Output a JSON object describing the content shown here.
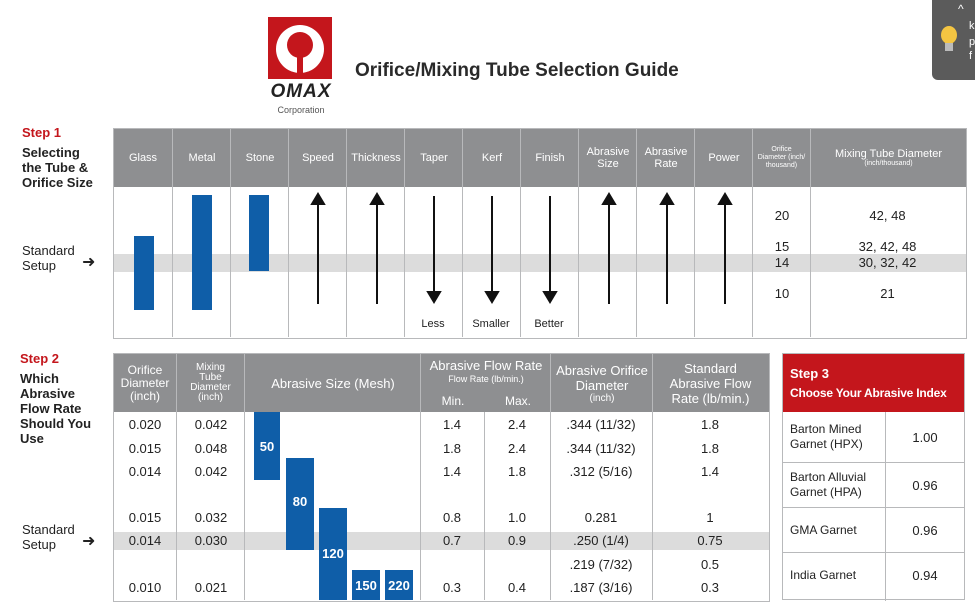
{
  "brand": {
    "name": "OMAX",
    "sub": "Corporation"
  },
  "title": "Orifice/Mixing Tube Selection Guide",
  "tooltip": {
    "lines": [
      "k",
      "p",
      "f"
    ]
  },
  "step1": {
    "label": "Step 1",
    "text": [
      "Selecting",
      "the Tube &",
      "Orifice Size"
    ],
    "standard": [
      "Standard",
      "Setup"
    ],
    "headers": [
      "Glass",
      "Metal",
      "Stone",
      "Speed",
      "Thickness",
      "Taper",
      "Kerf",
      "Finish",
      "Abrasive Size",
      "Abrasive Rate",
      "Power"
    ],
    "orifice_hdr": "Orifice Diameter (inch/ thousand)",
    "mixing_hdr": "Mixing Tube Diameter",
    "mixing_hdr_sub": "(inch/thousand)",
    "bottom_labels": {
      "taper": "Less",
      "kerf": "Smaller",
      "finish": "Better"
    },
    "rows": [
      {
        "orifice": "20",
        "mixing": "42, 48"
      },
      {
        "orifice": "15",
        "mixing": "32, 42, 48"
      },
      {
        "orifice": "14",
        "mixing": "30, 32, 42"
      },
      {
        "orifice": "10",
        "mixing": "21"
      }
    ]
  },
  "step2": {
    "label": "Step 2",
    "text": [
      "Which",
      "Abrasive",
      "Flow Rate",
      "Should You",
      "Use"
    ],
    "standard": [
      "Standard",
      "Setup"
    ],
    "headers": {
      "orifice": "Orifice Diameter (inch)",
      "mixing": "Mixing Tube Diameter (inch)",
      "abrasive_size": "Abrasive Size (Mesh)",
      "flow": "Abrasive Flow Rate",
      "flow_sub": "Flow Rate (lb/min.)",
      "min": "Min.",
      "max": "Max.",
      "abr_orifice": "Abrasive Orifice Diameter",
      "abr_orifice_unit": "(inch)",
      "std_flow": "Standard Abrasive Flow Rate (lb/min.)"
    },
    "mesh": [
      "50",
      "80",
      "120",
      "150",
      "220"
    ],
    "rows": [
      {
        "orifice": "0.020",
        "mixing": "0.042",
        "min": "1.4",
        "max": "2.4",
        "abr": ".344 (11/32)",
        "std": "1.8"
      },
      {
        "orifice": "0.015",
        "mixing": "0.048",
        "min": "1.8",
        "max": "2.4",
        "abr": ".344 (11/32)",
        "std": "1.8"
      },
      {
        "orifice": "0.014",
        "mixing": "0.042",
        "min": "1.4",
        "max": "1.8",
        "abr": ".312 (5/16)",
        "std": "1.4"
      },
      {
        "orifice": "0.015",
        "mixing": "0.032",
        "min": "0.8",
        "max": "1.0",
        "abr": "0.281",
        "std": "1"
      },
      {
        "orifice": "0.014",
        "mixing": "0.030",
        "min": "0.7",
        "max": "0.9",
        "abr": ".250 (1/4)",
        "std": "0.75"
      },
      {
        "orifice": "",
        "mixing": "",
        "min": "",
        "max": "",
        "abr": ".219 (7/32)",
        "std": "0.5"
      },
      {
        "orifice": "0.010",
        "mixing": "0.021",
        "min": "0.3",
        "max": "0.4",
        "abr": ".187 (3/16)",
        "std": "0.3"
      }
    ]
  },
  "step3": {
    "label": "Step 3",
    "title": "Choose Your Abrasive Index",
    "rows": [
      {
        "name": "Barton Mined Garnet (HPX)",
        "value": "1.00"
      },
      {
        "name": "Barton Alluvial Garnet (HPA)",
        "value": "0.96"
      },
      {
        "name": "GMA Garnet",
        "value": "0.96"
      },
      {
        "name": "India Garnet",
        "value": "0.94"
      }
    ]
  },
  "colors": {
    "accent": "#c4161c",
    "bar": "#0f5ea8",
    "header": "#8e8f91",
    "band": "#dcdcdc"
  }
}
